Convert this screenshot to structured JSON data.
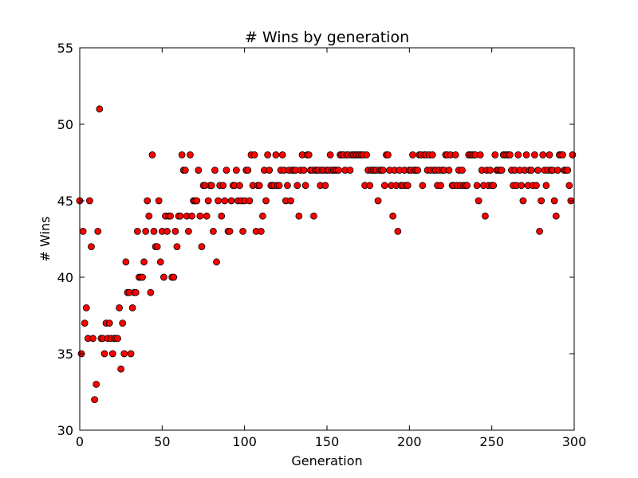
{
  "chart_data": {
    "type": "scatter",
    "title": "# Wins by generation",
    "xlabel": "Generation",
    "ylabel": "# Wins",
    "xlim": [
      0,
      300
    ],
    "ylim": [
      30,
      55
    ],
    "xticks": [
      0,
      50,
      100,
      150,
      200,
      250,
      300
    ],
    "yticks": [
      30,
      35,
      40,
      45,
      50,
      55
    ],
    "grid": false,
    "marker_color": "#ff0000",
    "marker_edge_color": "#000000",
    "series": [
      {
        "points": [
          [
            0,
            45
          ],
          [
            1,
            35
          ],
          [
            2,
            43
          ],
          [
            3,
            37
          ],
          [
            4,
            38
          ],
          [
            5,
            36
          ],
          [
            6,
            45
          ],
          [
            7,
            42
          ],
          [
            8,
            36
          ],
          [
            9,
            32
          ],
          [
            10,
            33
          ],
          [
            11,
            43
          ],
          [
            12,
            51
          ],
          [
            13,
            36
          ],
          [
            14,
            36
          ],
          [
            15,
            35
          ],
          [
            16,
            37
          ],
          [
            17,
            36
          ],
          [
            18,
            37
          ],
          [
            19,
            36
          ],
          [
            20,
            35
          ],
          [
            21,
            36
          ],
          [
            22,
            36
          ],
          [
            23,
            36
          ],
          [
            24,
            38
          ],
          [
            25,
            34
          ],
          [
            26,
            37
          ],
          [
            27,
            35
          ],
          [
            28,
            41
          ],
          [
            29,
            39
          ],
          [
            30,
            39
          ],
          [
            31,
            35
          ],
          [
            32,
            38
          ],
          [
            33,
            39
          ],
          [
            34,
            39
          ],
          [
            35,
            43
          ],
          [
            36,
            40
          ],
          [
            37,
            40
          ],
          [
            38,
            40
          ],
          [
            39,
            41
          ],
          [
            40,
            43
          ],
          [
            41,
            45
          ],
          [
            42,
            44
          ],
          [
            43,
            39
          ],
          [
            44,
            48
          ],
          [
            45,
            43
          ],
          [
            46,
            42
          ],
          [
            47,
            42
          ],
          [
            48,
            45
          ],
          [
            49,
            41
          ],
          [
            50,
            43
          ],
          [
            51,
            40
          ],
          [
            52,
            44
          ],
          [
            53,
            43
          ],
          [
            54,
            44
          ],
          [
            55,
            44
          ],
          [
            56,
            40
          ],
          [
            57,
            40
          ],
          [
            58,
            43
          ],
          [
            59,
            42
          ],
          [
            60,
            44
          ],
          [
            61,
            44
          ],
          [
            62,
            48
          ],
          [
            63,
            47
          ],
          [
            64,
            47
          ],
          [
            65,
            44
          ],
          [
            66,
            43
          ],
          [
            67,
            48
          ],
          [
            68,
            44
          ],
          [
            69,
            45
          ],
          [
            70,
            45
          ],
          [
            71,
            45
          ],
          [
            72,
            47
          ],
          [
            73,
            44
          ],
          [
            74,
            42
          ],
          [
            75,
            46
          ],
          [
            76,
            46
          ],
          [
            77,
            44
          ],
          [
            78,
            45
          ],
          [
            79,
            46
          ],
          [
            80,
            46
          ],
          [
            81,
            43
          ],
          [
            82,
            47
          ],
          [
            83,
            41
          ],
          [
            84,
            45
          ],
          [
            85,
            46
          ],
          [
            86,
            44
          ],
          [
            87,
            46
          ],
          [
            88,
            45
          ],
          [
            89,
            47
          ],
          [
            90,
            43
          ],
          [
            91,
            43
          ],
          [
            92,
            45
          ],
          [
            93,
            46
          ],
          [
            94,
            46
          ],
          [
            95,
            47
          ],
          [
            96,
            45
          ],
          [
            97,
            46
          ],
          [
            98,
            45
          ],
          [
            99,
            43
          ],
          [
            100,
            45
          ],
          [
            101,
            47
          ],
          [
            102,
            47
          ],
          [
            103,
            45
          ],
          [
            104,
            48
          ],
          [
            105,
            46
          ],
          [
            106,
            48
          ],
          [
            107,
            43
          ],
          [
            108,
            46
          ],
          [
            109,
            46
          ],
          [
            110,
            43
          ],
          [
            111,
            44
          ],
          [
            112,
            47
          ],
          [
            113,
            45
          ],
          [
            114,
            48
          ],
          [
            115,
            47
          ],
          [
            116,
            46
          ],
          [
            117,
            46
          ],
          [
            118,
            46
          ],
          [
            119,
            48
          ],
          [
            120,
            46
          ],
          [
            121,
            46
          ],
          [
            122,
            47
          ],
          [
            123,
            48
          ],
          [
            124,
            47
          ],
          [
            125,
            45
          ],
          [
            126,
            46
          ],
          [
            127,
            47
          ],
          [
            128,
            45
          ],
          [
            129,
            47
          ],
          [
            130,
            47
          ],
          [
            131,
            47
          ],
          [
            132,
            46
          ],
          [
            133,
            44
          ],
          [
            134,
            47
          ],
          [
            135,
            48
          ],
          [
            136,
            47
          ],
          [
            137,
            46
          ],
          [
            138,
            48
          ],
          [
            139,
            48
          ],
          [
            140,
            47
          ],
          [
            141,
            47
          ],
          [
            142,
            44
          ],
          [
            143,
            47
          ],
          [
            144,
            47
          ],
          [
            145,
            47
          ],
          [
            146,
            46
          ],
          [
            147,
            47
          ],
          [
            148,
            47
          ],
          [
            149,
            46
          ],
          [
            150,
            47
          ],
          [
            151,
            47
          ],
          [
            152,
            48
          ],
          [
            153,
            47
          ],
          [
            154,
            47
          ],
          [
            155,
            47
          ],
          [
            156,
            47
          ],
          [
            157,
            47
          ],
          [
            158,
            48
          ],
          [
            159,
            48
          ],
          [
            160,
            48
          ],
          [
            161,
            47
          ],
          [
            162,
            48
          ],
          [
            163,
            48
          ],
          [
            164,
            47
          ],
          [
            165,
            48
          ],
          [
            166,
            48
          ],
          [
            167,
            48
          ],
          [
            168,
            48
          ],
          [
            169,
            48
          ],
          [
            170,
            48
          ],
          [
            171,
            48
          ],
          [
            172,
            48
          ],
          [
            173,
            46
          ],
          [
            174,
            48
          ],
          [
            175,
            47
          ],
          [
            176,
            46
          ],
          [
            177,
            47
          ],
          [
            178,
            47
          ],
          [
            179,
            47
          ],
          [
            180,
            47
          ],
          [
            181,
            45
          ],
          [
            182,
            47
          ],
          [
            183,
            47
          ],
          [
            184,
            47
          ],
          [
            185,
            46
          ],
          [
            186,
            48
          ],
          [
            187,
            48
          ],
          [
            188,
            47
          ],
          [
            189,
            46
          ],
          [
            190,
            44
          ],
          [
            191,
            47
          ],
          [
            192,
            46
          ],
          [
            193,
            43
          ],
          [
            194,
            47
          ],
          [
            195,
            46
          ],
          [
            196,
            46
          ],
          [
            197,
            47
          ],
          [
            198,
            46
          ],
          [
            199,
            46
          ],
          [
            200,
            47
          ],
          [
            201,
            47
          ],
          [
            202,
            48
          ],
          [
            203,
            47
          ],
          [
            204,
            47
          ],
          [
            205,
            47
          ],
          [
            206,
            48
          ],
          [
            207,
            48
          ],
          [
            208,
            46
          ],
          [
            209,
            48
          ],
          [
            210,
            48
          ],
          [
            211,
            47
          ],
          [
            212,
            48
          ],
          [
            213,
            47
          ],
          [
            214,
            48
          ],
          [
            215,
            47
          ],
          [
            216,
            47
          ],
          [
            217,
            46
          ],
          [
            218,
            47
          ],
          [
            219,
            46
          ],
          [
            220,
            47
          ],
          [
            221,
            47
          ],
          [
            222,
            48
          ],
          [
            223,
            48
          ],
          [
            224,
            47
          ],
          [
            225,
            48
          ],
          [
            226,
            46
          ],
          [
            227,
            46
          ],
          [
            228,
            48
          ],
          [
            229,
            46
          ],
          [
            230,
            47
          ],
          [
            231,
            46
          ],
          [
            232,
            47
          ],
          [
            233,
            46
          ],
          [
            234,
            46
          ],
          [
            235,
            46
          ],
          [
            236,
            48
          ],
          [
            237,
            48
          ],
          [
            238,
            48
          ],
          [
            239,
            48
          ],
          [
            240,
            48
          ],
          [
            241,
            46
          ],
          [
            242,
            45
          ],
          [
            243,
            48
          ],
          [
            244,
            47
          ],
          [
            245,
            46
          ],
          [
            246,
            44
          ],
          [
            247,
            47
          ],
          [
            248,
            46
          ],
          [
            249,
            47
          ],
          [
            250,
            46
          ],
          [
            251,
            46
          ],
          [
            252,
            48
          ],
          [
            253,
            47
          ],
          [
            254,
            47
          ],
          [
            255,
            47
          ],
          [
            256,
            47
          ],
          [
            257,
            48
          ],
          [
            258,
            48
          ],
          [
            259,
            48
          ],
          [
            260,
            48
          ],
          [
            261,
            48
          ],
          [
            262,
            47
          ],
          [
            263,
            46
          ],
          [
            264,
            47
          ],
          [
            265,
            46
          ],
          [
            266,
            48
          ],
          [
            267,
            47
          ],
          [
            268,
            46
          ],
          [
            269,
            45
          ],
          [
            270,
            47
          ],
          [
            271,
            48
          ],
          [
            272,
            46
          ],
          [
            273,
            47
          ],
          [
            274,
            47
          ],
          [
            275,
            46
          ],
          [
            276,
            48
          ],
          [
            277,
            46
          ],
          [
            278,
            47
          ],
          [
            279,
            43
          ],
          [
            280,
            45
          ],
          [
            281,
            48
          ],
          [
            282,
            47
          ],
          [
            283,
            46
          ],
          [
            284,
            47
          ],
          [
            285,
            48
          ],
          [
            286,
            47
          ],
          [
            287,
            47
          ],
          [
            288,
            45
          ],
          [
            289,
            44
          ],
          [
            290,
            47
          ],
          [
            291,
            48
          ],
          [
            292,
            48
          ],
          [
            293,
            48
          ],
          [
            294,
            47
          ],
          [
            295,
            47
          ],
          [
            296,
            47
          ],
          [
            297,
            46
          ],
          [
            298,
            45
          ],
          [
            299,
            48
          ]
        ]
      }
    ]
  }
}
